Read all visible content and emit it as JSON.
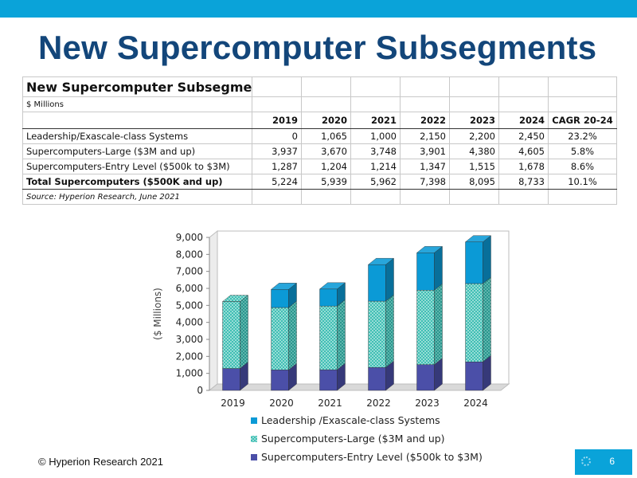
{
  "slide": {
    "title": "New Supercomputer Subsegments",
    "footer": "© Hyperion Research 2021",
    "page_number": "6",
    "accent_color": "#0aa3d9",
    "title_color": "#13467a"
  },
  "table": {
    "title": "New Supercomputer Subsegments",
    "unit": "$ Millions",
    "headers": [
      "",
      "2019",
      "2020",
      "2021",
      "2022",
      "2023",
      "2024",
      "CAGR 20-24"
    ],
    "rows": [
      [
        "Leadership/Exascale-class Systems",
        "0",
        "1,065",
        "1,000",
        "2,150",
        "2,200",
        "2,450",
        "23.2%"
      ],
      [
        "Supercomputers-Large ($3M and up)",
        "3,937",
        "3,670",
        "3,748",
        "3,901",
        "4,380",
        "4,605",
        "5.8%"
      ],
      [
        "Supercomputers-Entry Level ($500k to $3M)",
        "1,287",
        "1,204",
        "1,214",
        "1,347",
        "1,515",
        "1,678",
        "8.6%"
      ],
      [
        "Total Supercomputers ($500K and up)",
        "5,224",
        "5,939",
        "5,962",
        "7,398",
        "8,095",
        "8,733",
        "10.1%"
      ]
    ],
    "source": "Source: Hyperion Research, June 2021"
  },
  "chart_data": {
    "type": "bar",
    "stacked": true,
    "three_d": true,
    "categories": [
      "2019",
      "2020",
      "2021",
      "2022",
      "2023",
      "2024"
    ],
    "series": [
      {
        "name": "Supercomputers-Entry Level ($500k to $3M)",
        "values": [
          1287,
          1204,
          1214,
          1347,
          1515,
          1678
        ],
        "color": "#4b4fa8",
        "pattern": "solid"
      },
      {
        "name": "Supercomputers-Large ($3M and up)",
        "values": [
          3937,
          3670,
          3748,
          3901,
          4380,
          4605
        ],
        "color": "#3fbfb4",
        "pattern": "dots"
      },
      {
        "name": "Leadership /Exascale-class Systems",
        "values": [
          0,
          1065,
          1000,
          2150,
          2200,
          2450
        ],
        "color": "#0b9ad6",
        "pattern": "solid"
      }
    ],
    "legend_order": [
      2,
      1,
      0
    ],
    "ylabel": "($ Millions)",
    "ylim": [
      0,
      9000
    ],
    "yticks": [
      0,
      1000,
      2000,
      3000,
      4000,
      5000,
      6000,
      7000,
      8000,
      9000
    ],
    "ytick_labels": [
      "0",
      "1,000",
      "2,000",
      "3,000",
      "4,000",
      "5,000",
      "6,000",
      "7,000",
      "8,000",
      "9,000"
    ],
    "grid": false,
    "legend_position": "bottom"
  }
}
